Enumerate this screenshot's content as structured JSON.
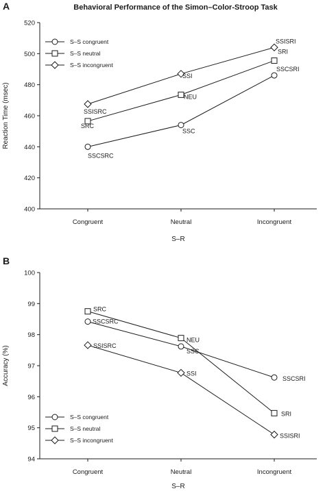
{
  "chart_data": [
    {
      "panel": "A",
      "type": "line",
      "title": "Behavioral Performance of the Simon–Color-Stroop Task",
      "xlabel": "S–R",
      "ylabel": "Reaction Time (msec)",
      "ylim": [
        400,
        520
      ],
      "yticks": [
        "400",
        "420",
        "440",
        "460",
        "480",
        "500",
        "520"
      ],
      "categories": [
        "Congruent",
        "Neutral",
        "Incongruent"
      ],
      "legend_position": "top-left",
      "series": [
        {
          "name": "S–S congruent",
          "marker": "circle",
          "values": [
            440,
            454,
            486
          ],
          "labels": [
            "SSCSRC",
            "SSC",
            "SSCSRI"
          ]
        },
        {
          "name": "S–S neutral",
          "marker": "square",
          "values": [
            456.5,
            473.5,
            495.5
          ],
          "labels": [
            "SRC",
            "NEU",
            "SRI"
          ]
        },
        {
          "name": "S–S incongruent",
          "marker": "diamond",
          "values": [
            467.5,
            487,
            504
          ],
          "labels": [
            "SSISRC",
            "SSI",
            "SSISRI"
          ]
        }
      ]
    },
    {
      "panel": "B",
      "type": "line",
      "title": "",
      "xlabel": "S–R",
      "ylabel": "Accuracy (%)",
      "ylim": [
        94,
        100
      ],
      "yticks": [
        "94",
        "95",
        "96",
        "97",
        "98",
        "99",
        "100"
      ],
      "categories": [
        "Congruent",
        "Neutral",
        "Incongruent"
      ],
      "legend_position": "bottom-left",
      "series": [
        {
          "name": "S–S congruent",
          "marker": "circle",
          "values": [
            98.42,
            97.62,
            96.62
          ],
          "labels": [
            "SSCSRC",
            "SSC",
            "SSCSRI"
          ]
        },
        {
          "name": "S–S neutral",
          "marker": "square",
          "values": [
            98.75,
            97.89,
            95.47
          ],
          "labels": [
            "SRC",
            "NEU",
            "SRI"
          ]
        },
        {
          "name": "S–S incongruent",
          "marker": "diamond",
          "values": [
            97.66,
            96.77,
            94.78
          ],
          "labels": [
            "SSISRC",
            "SSI",
            "SSISRI"
          ]
        }
      ]
    }
  ]
}
